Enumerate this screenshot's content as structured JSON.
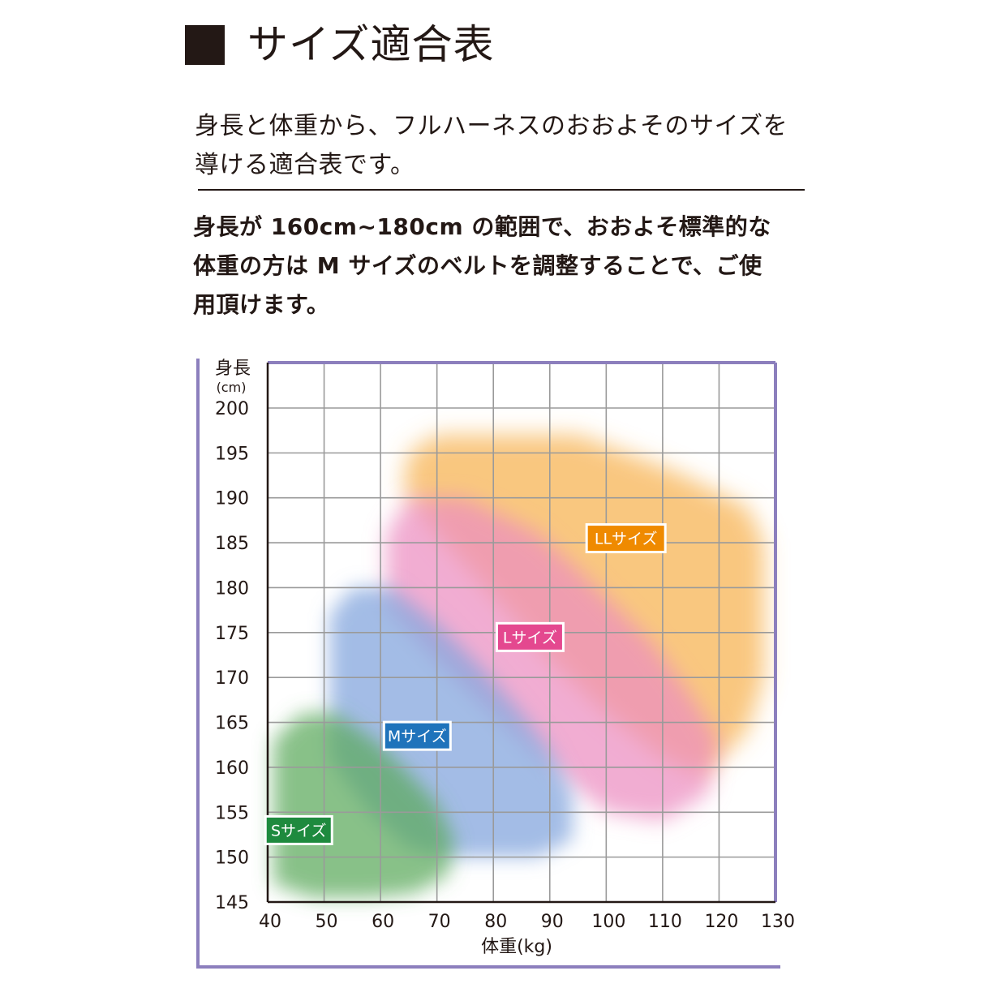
{
  "header": {
    "title": "サイズ適合表"
  },
  "intro": {
    "line1": "身長と体重から、フルハーネスのおおよそのサイズを",
    "line2": "導ける適合表です。"
  },
  "note": {
    "line1": "身長が 160cm~180cm の範囲で、おおよそ標準的な",
    "line2": "体重の方は M サイズのベルトを調整することで、ご使",
    "line3": "用頂けます。"
  },
  "chart_data": {
    "type": "area",
    "title": "",
    "ylabel_line1": "身長",
    "ylabel_line2": "(cm)",
    "xlabel": "体重(kg)",
    "xlim": [
      40,
      130
    ],
    "ylim": [
      145,
      200
    ],
    "xticks": [
      40,
      50,
      60,
      70,
      80,
      90,
      100,
      110,
      120,
      130
    ],
    "yticks": [
      145,
      150,
      155,
      160,
      165,
      170,
      175,
      180,
      185,
      190,
      195,
      200
    ],
    "grid": true,
    "colors": {
      "axis": "#8c7fbd",
      "grid": "#9a9a9a",
      "S": "#5aa95a",
      "M": "#7fa2dc",
      "L": "#eb8ec0",
      "LL": "#f6b24e"
    },
    "series": [
      {
        "name": "LLサイズ",
        "label_color": "#ef8a00",
        "label_x": 103.5,
        "label_y": 185.5,
        "polygon": [
          [
            65,
            195
          ],
          [
            70,
            197
          ],
          [
            95,
            197
          ],
          [
            112,
            193
          ],
          [
            125,
            189
          ],
          [
            128,
            185
          ],
          [
            128,
            170
          ],
          [
            125,
            164
          ],
          [
            117,
            159
          ],
          [
            110,
            161
          ],
          [
            100,
            166
          ],
          [
            90,
            172
          ],
          [
            80,
            179
          ],
          [
            70,
            186
          ],
          [
            64,
            191
          ]
        ]
      },
      {
        "name": "Lサイズ",
        "label_color": "#e4488f",
        "label_x": 86.5,
        "label_y": 174.5,
        "polygon": [
          [
            61,
            186
          ],
          [
            65,
            190
          ],
          [
            75,
            190
          ],
          [
            88,
            186
          ],
          [
            95,
            182
          ],
          [
            108,
            174
          ],
          [
            115,
            168
          ],
          [
            120,
            163
          ],
          [
            118,
            157
          ],
          [
            110,
            154
          ],
          [
            100,
            155
          ],
          [
            90,
            160
          ],
          [
            80,
            166
          ],
          [
            70,
            172
          ],
          [
            61,
            178
          ]
        ]
      },
      {
        "name": "Mサイズ",
        "label_color": "#1f73bb",
        "label_x": 66.5,
        "label_y": 163.5,
        "polygon": [
          [
            51,
            177
          ],
          [
            55,
            180
          ],
          [
            62,
            180
          ],
          [
            70,
            176
          ],
          [
            78,
            171
          ],
          [
            85,
            166
          ],
          [
            90,
            162
          ],
          [
            94,
            157
          ],
          [
            94,
            152
          ],
          [
            88,
            150
          ],
          [
            80,
            150
          ],
          [
            72,
            150
          ],
          [
            65,
            151
          ],
          [
            58,
            155
          ],
          [
            51,
            161
          ]
        ]
      },
      {
        "name": "Sサイズ",
        "label_color": "#1e8a3e",
        "label_x": 45.5,
        "label_y": 153,
        "polygon": [
          [
            41,
            163
          ],
          [
            46,
            166
          ],
          [
            52,
            166
          ],
          [
            59,
            163
          ],
          [
            64,
            160
          ],
          [
            70,
            156
          ],
          [
            73,
            152
          ],
          [
            72,
            148
          ],
          [
            66,
            146
          ],
          [
            58,
            145.5
          ],
          [
            48,
            145.5
          ],
          [
            41,
            147
          ]
        ]
      }
    ]
  }
}
